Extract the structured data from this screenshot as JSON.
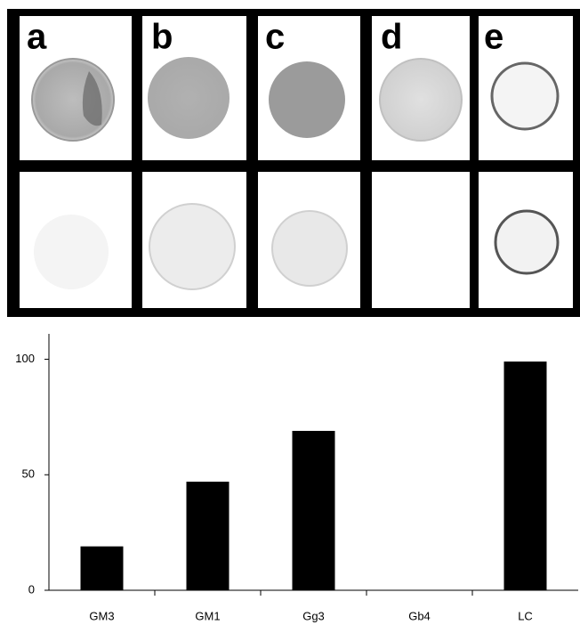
{
  "panel_labels": [
    "a",
    "b",
    "c",
    "d",
    "e"
  ],
  "chart_data": {
    "type": "bar",
    "categories": [
      "GM3",
      "GM1",
      "Gg3",
      "Gb4",
      "LC"
    ],
    "values": [
      19,
      47,
      69,
      0,
      99
    ],
    "color": "#000000",
    "ylim": [
      0,
      111
    ],
    "yticks": [
      0,
      50,
      100
    ],
    "grid": false
  }
}
